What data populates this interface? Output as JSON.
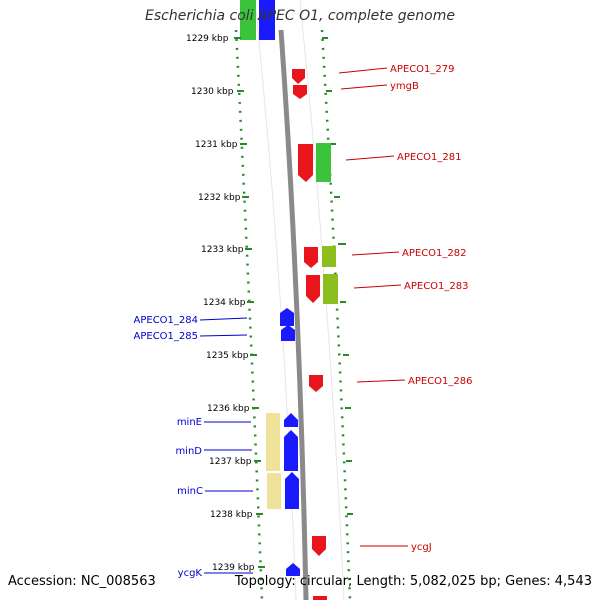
{
  "title": "Escherichia coli APEC O1, complete genome",
  "accession": "Accession: NC_008563",
  "summary": "Topology: circular; Length: 5,082,025 bp; Genes: 4,543",
  "tick_labels": [
    "1229 kbp",
    "1230 kbp",
    "1231 kbp",
    "1232 kbp",
    "1233 kbp",
    "1234 kbp",
    "1235 kbp",
    "1236 kbp",
    "1237 kbp",
    "1238 kbp",
    "1239 kbp"
  ],
  "colors": {
    "forward_gene": "#e8161c",
    "reverse_gene": "#1a1aff",
    "cog_green": "#3bc43b",
    "cog_olive": "#8cbf1e",
    "cog_yellow": "#efe29a",
    "backbone": "#808080",
    "tick": "#2a8a2a",
    "label_red": "#cc0000",
    "label_blue": "#0000cc"
  },
  "right_labels": [
    "APECO1_279",
    "ymgB",
    "APECO1_281",
    "APECO1_282",
    "APECO1_283",
    "APECO1_286",
    "ycgJ"
  ],
  "left_labels": [
    "APECO1_284",
    "APECO1_285",
    "minE",
    "minD",
    "minC",
    "ycgK"
  ]
}
